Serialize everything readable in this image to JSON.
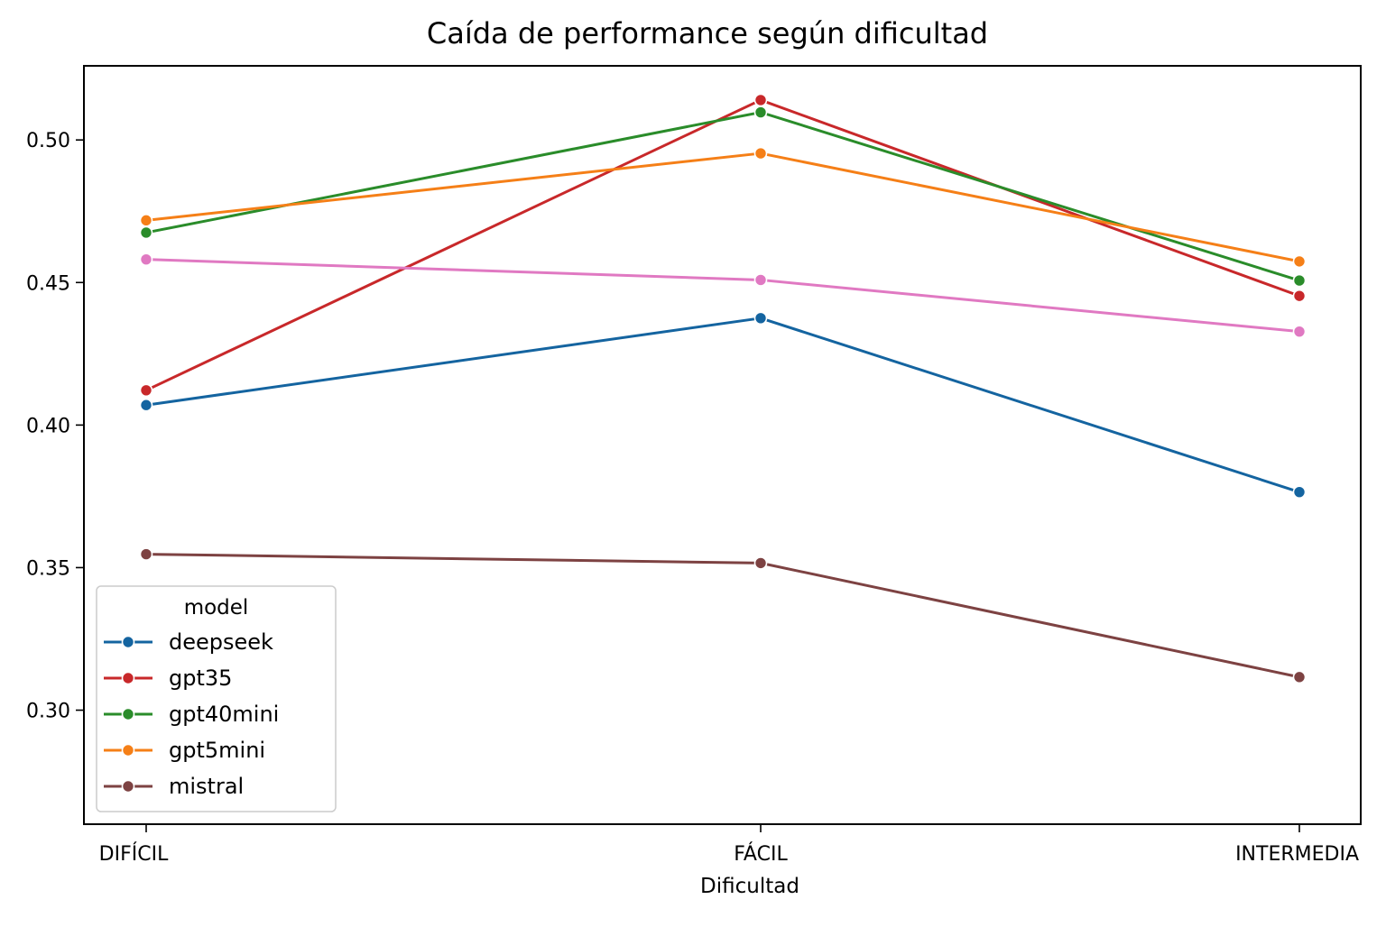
{
  "chart_data": {
    "type": "line",
    "title": "Caída de performance según dificultad",
    "xlabel": "Dificultad",
    "ylabel": "",
    "categories": [
      "DIFÍCIL",
      "FÁCIL",
      "INTERMEDIA"
    ],
    "ylim": [
      0.26,
      0.526
    ],
    "yticks": [
      0.3,
      0.35,
      0.4,
      0.45,
      0.5
    ],
    "ytick_labels": [
      "0.30",
      "0.35",
      "0.40",
      "0.45",
      "0.50"
    ],
    "grid": false,
    "legend": {
      "title": "model",
      "position": "lower-left"
    },
    "series": [
      {
        "name": "deepseek",
        "color": "#1464a0",
        "values": [
          0.407,
          0.4375,
          0.3765
        ],
        "marker": "circle"
      },
      {
        "name": "gpt35",
        "color": "#c8282a",
        "values": [
          0.4122,
          0.514,
          0.4453
        ],
        "marker": "circle"
      },
      {
        "name": "gpt40mini",
        "color": "#2a8c2a",
        "values": [
          0.4675,
          0.5097,
          0.4507
        ],
        "marker": "circle"
      },
      {
        "name": "gpt5mini",
        "color": "#f57f17",
        "values": [
          0.4718,
          0.4953,
          0.4574
        ],
        "marker": "circle"
      },
      {
        "name": "mistral",
        "color": "#7d4242",
        "values": [
          0.3547,
          0.3516,
          0.3116
        ],
        "marker": "circle"
      },
      {
        "name": "",
        "color": "#e079c2",
        "values": [
          0.4581,
          0.4509,
          0.4328
        ],
        "marker": "circle",
        "in_legend": false
      }
    ]
  }
}
